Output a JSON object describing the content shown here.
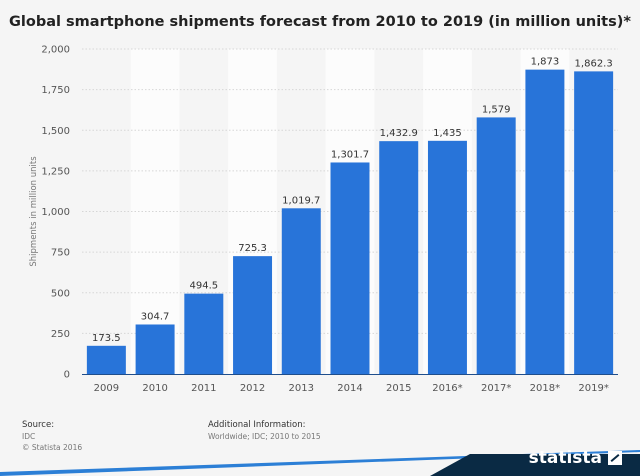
{
  "title": "Global smartphone shipments forecast from 2010 to 2019 (in million units)*",
  "colors": {
    "bar": "#2874d9",
    "band": "#fcfcfc",
    "grid": "#d6d6d6",
    "axis": "#1f4e8c",
    "brand_bg": "#0a2a44",
    "brand_accent": "#2c7fd6"
  },
  "chart_data": {
    "type": "bar",
    "categories": [
      "2009",
      "2010",
      "2011",
      "2012",
      "2013",
      "2014",
      "2015",
      "2016*",
      "2017*",
      "2018*",
      "2019*"
    ],
    "values": [
      173.5,
      304.7,
      494.5,
      725.3,
      1019.7,
      1301.7,
      1432.9,
      1435,
      1579,
      1873,
      1862.3
    ],
    "data_labels": [
      "173.5",
      "304.7",
      "494.5",
      "725.3",
      "1,019.7",
      "1,301.7",
      "1,432.9",
      "1,435",
      "1,579",
      "1,873",
      "1,862.3"
    ],
    "title": "Global smartphone shipments forecast from 2010 to 2019 (in million units)*",
    "xlabel": "",
    "ylabel": "Shipments in million units",
    "ylim": [
      0,
      2000
    ],
    "yticks": [
      0,
      250,
      500,
      750,
      1000,
      1250,
      1500,
      1750,
      2000
    ],
    "ytick_labels": [
      "0",
      "250",
      "500",
      "750",
      "1,000",
      "1,250",
      "1,500",
      "1,750",
      "2,000"
    ],
    "grid": true,
    "legend": "none"
  },
  "footer": {
    "source_heading": "Source:",
    "source_lines": [
      "IDC",
      "© Statista 2016"
    ],
    "info_heading": "Additional Information:",
    "info_text": "Worldwide; IDC; 2010 to 2015"
  },
  "brand": {
    "name": "statista"
  }
}
